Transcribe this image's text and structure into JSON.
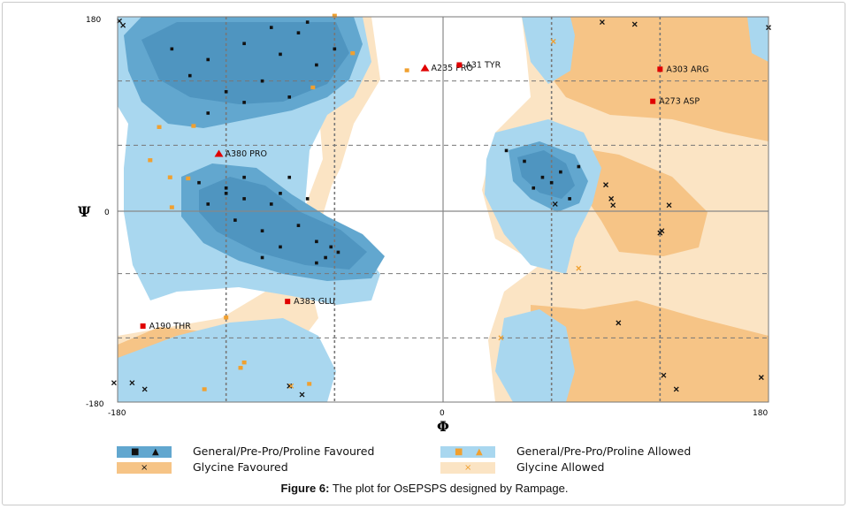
{
  "caption": {
    "label": "Figure 6:",
    "text": "The plot for OsEPSPS designed by Rampage."
  },
  "colors": {
    "general_favoured": "#62a7cf",
    "general_allowed": "#a9d7ef",
    "glycine_favoured": "#f6c486",
    "glycine_allowed": "#fbe4c4",
    "general_point": "#111111",
    "outlier": "#e00000",
    "glycine_allowed_marker": "#f0a030"
  },
  "legend": [
    {
      "label": "General/Pre-Pro/Proline Favoured",
      "swatch": "#62a7cf",
      "markers": [
        "■",
        "▲"
      ],
      "marker_color": "#111111"
    },
    {
      "label": "General/Pre-Pro/Proline Allowed",
      "swatch": "#a9d7ef",
      "markers": [
        "■",
        "▲"
      ],
      "marker_color": "#f0a030"
    },
    {
      "label": "Glycine Favoured",
      "swatch": "#f6c486",
      "markers": [
        "×"
      ],
      "marker_color": "#111111"
    },
    {
      "label": "Glycine Allowed",
      "swatch": "#fbe4c4",
      "markers": [
        "×"
      ],
      "marker_color": "#f0a030"
    }
  ],
  "chart_data": {
    "type": "scatter",
    "title": "",
    "xlabel": "Φ",
    "ylabel": "Ψ",
    "xlim": [
      -180,
      180
    ],
    "ylim": [
      -180,
      180
    ],
    "x_ticks": [
      "-180",
      "0",
      "180"
    ],
    "y_ticks": [
      "180",
      "0",
      "-180"
    ],
    "dashed_guides_x": [
      -120,
      -60,
      60,
      120
    ],
    "dashed_guides_y": [
      120,
      60,
      -60,
      -120
    ],
    "outliers": [
      {
        "label": "A235 PRO",
        "phi": -10,
        "psi": 132,
        "shape": "triangle"
      },
      {
        "label": "A31 TYR",
        "phi": 9,
        "psi": 135,
        "shape": "square"
      },
      {
        "label": "A303 ARG",
        "phi": 120,
        "psi": 131,
        "shape": "square"
      },
      {
        "label": "A273 ASP",
        "phi": 116,
        "psi": 101,
        "shape": "square"
      },
      {
        "label": "A380 PRO",
        "phi": -124,
        "psi": 52,
        "shape": "triangle"
      },
      {
        "label": "A383 GLU",
        "phi": -86,
        "psi": -86,
        "shape": "square"
      },
      {
        "label": "A190 THR",
        "phi": -166,
        "psi": -109,
        "shape": "square"
      }
    ],
    "general_allowed_points": [
      [
        -157,
        77
      ],
      [
        -162,
        46
      ],
      [
        -138,
        78
      ],
      [
        -151,
        30
      ],
      [
        -150,
        2
      ],
      [
        -141,
        29
      ],
      [
        -120,
        -101
      ],
      [
        -110,
        -143
      ],
      [
        -112,
        -148
      ],
      [
        -132,
        -168
      ],
      [
        -60,
        181
      ],
      [
        -50,
        146
      ],
      [
        -72,
        114
      ],
      [
        -20,
        130
      ],
      [
        -74,
        -163
      ]
    ],
    "glycine_points": [
      [
        -177,
        172
      ],
      [
        -179,
        176
      ],
      [
        88,
        175
      ],
      [
        106,
        173
      ],
      [
        180,
        170
      ],
      [
        62,
        5
      ],
      [
        90,
        23
      ],
      [
        93,
        10
      ],
      [
        94,
        4
      ],
      [
        125,
        4
      ],
      [
        121,
        -20
      ],
      [
        120,
        -22
      ],
      [
        97,
        -106
      ],
      [
        122,
        -155
      ],
      [
        129,
        -168
      ],
      [
        176,
        -157
      ],
      [
        -182,
        -162
      ],
      [
        -165,
        -168
      ],
      [
        -172,
        -162
      ],
      [
        -85,
        -165
      ],
      [
        -78,
        -173
      ]
    ],
    "glycine_allowed_points": [
      [
        61,
        157
      ],
      [
        75,
        -55
      ],
      [
        32,
        -120
      ],
      [
        -84,
        -165
      ]
    ],
    "favoured_general_points": [
      [
        -150,
        150
      ],
      [
        -130,
        140
      ],
      [
        -110,
        155
      ],
      [
        -100,
        120
      ],
      [
        -90,
        145
      ],
      [
        -80,
        165
      ],
      [
        -70,
        135
      ],
      [
        -120,
        110
      ],
      [
        -140,
        125
      ],
      [
        -60,
        150
      ],
      [
        -75,
        175
      ],
      [
        -95,
        170
      ],
      [
        -110,
        100
      ],
      [
        -85,
        105
      ],
      [
        -130,
        90
      ],
      [
        -120,
        20
      ],
      [
        -110,
        10
      ],
      [
        -100,
        -20
      ],
      [
        -95,
        5
      ],
      [
        -90,
        -35
      ],
      [
        -80,
        -15
      ],
      [
        -70,
        -30
      ],
      [
        -62,
        -35
      ],
      [
        -65,
        -45
      ],
      [
        -58,
        -40
      ],
      [
        -70,
        -50
      ],
      [
        -100,
        -45
      ],
      [
        -120,
        15
      ],
      [
        -110,
        30
      ],
      [
        -130,
        5
      ],
      [
        -115,
        -10
      ],
      [
        -135,
        25
      ],
      [
        -90,
        15
      ],
      [
        -85,
        30
      ],
      [
        -75,
        10
      ],
      [
        35,
        55
      ],
      [
        45,
        45
      ],
      [
        55,
        30
      ],
      [
        60,
        25
      ],
      [
        65,
        35
      ],
      [
        70,
        10
      ],
      [
        50,
        20
      ],
      [
        75,
        40
      ]
    ]
  }
}
